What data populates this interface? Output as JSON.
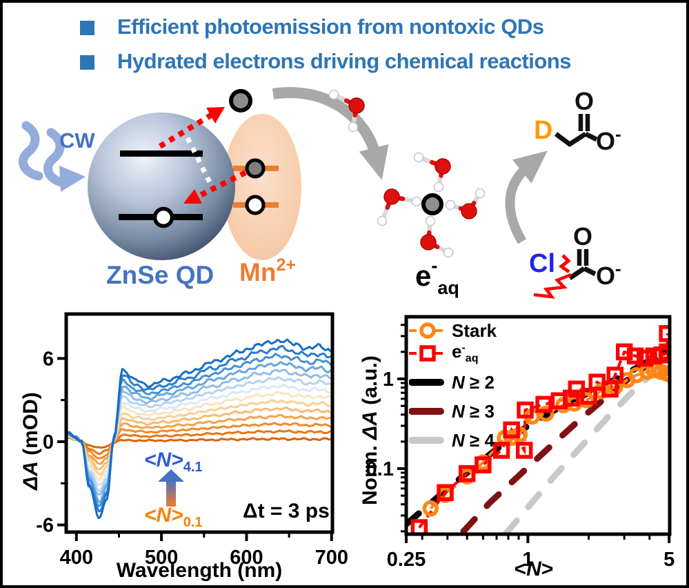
{
  "header": {
    "text_color": "#2E75B6",
    "items": [
      {
        "label": "Efficient photoemission from nontoxic QDs"
      },
      {
        "label": "Hydrated electrons driving chemical reactions"
      }
    ]
  },
  "diagram": {
    "cw_label": "CW",
    "qd_label": "ZnSe QD",
    "mn": {
      "base": "Mn",
      "sup": "2+"
    },
    "eaq": {
      "base": "e",
      "sup": "-",
      "sub": "aq"
    },
    "acetate_top": {
      "d_label": "D",
      "o_label": "O",
      "o2_label": "O",
      "o2_sup": "-"
    },
    "acetate_bottom": {
      "cl_label": "Cl",
      "o_label": "O",
      "o2_label": "O",
      "o2_sup": "-"
    },
    "colors": {
      "cw_arrow": "#93ACDB",
      "cw_text": "#4472C4",
      "qd_text": "#4472C4",
      "mn_text": "#ED7D31",
      "mn_level": "#ED7D31",
      "d_text": "#FF9900",
      "cl_text": "#2222EE",
      "electron_fill": "#8C8C8C",
      "hole_fill": "#FFFFFF",
      "photon_red": "#FF0000",
      "gray_arrow": "#A8A8A8",
      "water_o": "#DF1010",
      "water_h": "#FFFFFF",
      "bond": "#D9D9D9"
    }
  },
  "chart_data": [
    {
      "type": "line",
      "xlabel": "Wavelength (nm)",
      "ylabel_italic": "ΔA",
      "ylabel_rest": " (mOD)",
      "xlim": [
        388,
        701
      ],
      "ylim": [
        -6.5,
        9.2
      ],
      "xticks": [
        400,
        500,
        600,
        700
      ],
      "xminorticks": [
        450,
        550,
        650
      ],
      "yticks": [
        6,
        0,
        -6
      ],
      "yminorticks": [
        3,
        -3
      ],
      "x_anchors": [
        390,
        398,
        406,
        415,
        427,
        436,
        444,
        454,
        470,
        484,
        505,
        530,
        560,
        590,
        615,
        640,
        658,
        672,
        686,
        700
      ],
      "series": [
        {
          "color": "#dd6200",
          "y": [
            0.3,
            0.15,
            0.0,
            -0.27,
            -0.45,
            -0.34,
            -0.03,
            0.1,
            0.09,
            0.08,
            0.09,
            0.11,
            0.14,
            0.17,
            0.19,
            0.2,
            0.19,
            0.18,
            0.19,
            0.18
          ]
        },
        {
          "color": "#e97511",
          "y": [
            0.33,
            0.17,
            0.0,
            -0.5,
            -0.84,
            -0.63,
            -0.01,
            0.49,
            0.42,
            0.38,
            0.42,
            0.48,
            0.57,
            0.65,
            0.71,
            0.75,
            0.72,
            0.69,
            0.71,
            0.68
          ]
        },
        {
          "color": "#f08a28",
          "y": [
            0.36,
            0.18,
            0.0,
            -0.73,
            -1.22,
            -0.92,
            0.01,
            0.89,
            0.76,
            0.69,
            0.76,
            0.86,
            1.0,
            1.13,
            1.23,
            1.29,
            1.24,
            1.19,
            1.21,
            1.16
          ]
        },
        {
          "color": "#f5a24a",
          "y": [
            0.39,
            0.2,
            0.0,
            -0.97,
            -1.61,
            -1.21,
            0.03,
            1.28,
            1.09,
            1.0,
            1.09,
            1.23,
            1.43,
            1.61,
            1.76,
            1.84,
            1.77,
            1.69,
            1.73,
            1.66
          ]
        },
        {
          "color": "#f9ba72",
          "y": [
            0.42,
            0.21,
            0.0,
            -1.19,
            -1.99,
            -1.49,
            0.05,
            1.67,
            1.42,
            1.3,
            1.42,
            1.6,
            1.87,
            2.1,
            2.29,
            2.39,
            2.29,
            2.2,
            2.25,
            2.15
          ]
        },
        {
          "color": "#fccf97",
          "y": [
            0.45,
            0.23,
            0.0,
            -1.42,
            -2.37,
            -1.78,
            0.07,
            2.06,
            1.75,
            1.61,
            1.75,
            1.97,
            2.29,
            2.57,
            2.8,
            2.93,
            2.81,
            2.7,
            2.75,
            2.64
          ]
        },
        {
          "color": "#fbe3c0",
          "y": [
            0.48,
            0.24,
            0.0,
            -1.66,
            -2.76,
            -2.07,
            0.09,
            2.46,
            2.09,
            1.92,
            2.09,
            2.35,
            2.73,
            3.06,
            3.33,
            3.48,
            3.34,
            3.2,
            3.27,
            3.13
          ]
        },
        {
          "color": "#d9e8f7",
          "y": [
            0.52,
            0.26,
            0.0,
            -1.88,
            -3.14,
            -2.36,
            0.11,
            2.84,
            2.41,
            2.22,
            2.41,
            2.71,
            3.15,
            3.53,
            3.85,
            4.02,
            3.86,
            3.7,
            3.78,
            3.62
          ]
        },
        {
          "color": "#b5d3ef",
          "y": [
            0.55,
            0.27,
            0.0,
            -2.12,
            -3.53,
            -2.65,
            0.13,
            3.24,
            2.75,
            2.53,
            2.75,
            3.09,
            3.58,
            4.02,
            4.37,
            4.57,
            4.39,
            4.2,
            4.3,
            4.11
          ]
        },
        {
          "color": "#8fbde8",
          "y": [
            0.58,
            0.29,
            0.0,
            -2.35,
            -3.91,
            -2.93,
            0.15,
            3.63,
            3.09,
            2.83,
            3.08,
            3.45,
            4.01,
            4.49,
            4.89,
            5.11,
            4.91,
            4.7,
            4.8,
            4.6
          ]
        },
        {
          "color": "#67a7df",
          "y": [
            0.61,
            0.3,
            0.0,
            -2.58,
            -4.3,
            -3.23,
            0.17,
            4.02,
            3.42,
            3.14,
            3.42,
            3.83,
            4.44,
            4.98,
            5.42,
            5.66,
            5.43,
            5.21,
            5.32,
            5.09
          ]
        },
        {
          "color": "#4590d5",
          "y": [
            0.64,
            0.32,
            0.0,
            -2.81,
            -4.68,
            -3.51,
            0.19,
            4.41,
            3.75,
            3.44,
            3.74,
            4.2,
            4.87,
            5.46,
            5.94,
            6.21,
            5.96,
            5.71,
            5.84,
            5.59
          ]
        },
        {
          "color": "#2b7ccd",
          "y": [
            0.67,
            0.33,
            0.0,
            -3.04,
            -5.07,
            -3.8,
            0.21,
            4.81,
            4.09,
            3.75,
            4.08,
            4.58,
            5.3,
            5.94,
            6.46,
            6.75,
            6.48,
            6.21,
            6.35,
            6.08
          ]
        },
        {
          "color": "#176dc7",
          "y": [
            0.7,
            0.35,
            0.0,
            -3.27,
            -5.45,
            -4.09,
            0.24,
            5.2,
            4.42,
            4.06,
            4.41,
            4.95,
            5.73,
            6.42,
            6.99,
            7.3,
            7.01,
            6.72,
            6.87,
            6.57
          ]
        }
      ],
      "annotations": {
        "n_high_pre": "<N>",
        "n_high_sub": "4.1",
        "n_high_color": "#2E5BD9",
        "n_low_pre": "<N>",
        "n_low_sub": "0.1",
        "n_low_color": "#F5820B",
        "delay": "Δt = 3 ps",
        "arrow_top_color": "#4472C4",
        "arrow_bottom_color": "#ED7D31"
      }
    },
    {
      "type": "scatter",
      "xscale": "log",
      "yscale": "log",
      "xlabel_pre": "<",
      "xlabel_main": "N",
      "xlabel_post": ">",
      "ylabel_pre": "Norm. ",
      "ylabel_italic": "ΔA",
      "ylabel_post": " (a.u.)",
      "xlim": [
        0.228,
        5.35
      ],
      "ylim": [
        0.0165,
        5.3
      ],
      "xticks": [
        {
          "v": 0.25,
          "label": "0.25"
        },
        {
          "v": 1,
          "label": "1"
        },
        {
          "v": 5,
          "label": "5"
        }
      ],
      "xminorticks": [
        0.3,
        0.4,
        0.5,
        0.6,
        0.7,
        0.8,
        0.9,
        2,
        3,
        4
      ],
      "yticks": [
        {
          "v": 1,
          "label": "1"
        },
        {
          "v": 0.1,
          "label": "0.1"
        }
      ],
      "yminorticks": [
        0.02,
        0.03,
        0.04,
        0.05,
        0.06,
        0.07,
        0.08,
        0.09,
        0.2,
        0.3,
        0.4,
        0.5,
        0.6,
        0.7,
        0.8,
        0.9,
        2,
        3,
        4,
        5
      ],
      "series": [
        {
          "name": "Stark",
          "marker": "circle",
          "color": "#FF8616",
          "dash": true,
          "points": [
            [
              0.33,
              0.036
            ],
            [
              0.39,
              0.051
            ],
            [
              0.5,
              0.082
            ],
            [
              0.6,
              0.117
            ],
            [
              0.77,
              0.22
            ],
            [
              0.83,
              0.22
            ],
            [
              0.91,
              0.24
            ],
            [
              1.05,
              0.38
            ],
            [
              1.23,
              0.41
            ],
            [
              1.5,
              0.51
            ],
            [
              1.7,
              0.53
            ],
            [
              1.95,
              0.58
            ],
            [
              2.3,
              0.73
            ],
            [
              2.7,
              0.81
            ],
            [
              3.1,
              0.97
            ],
            [
              3.45,
              1.1
            ],
            [
              3.9,
              1.2
            ],
            [
              4.2,
              1.25
            ],
            [
              4.55,
              1.2
            ],
            [
              4.85,
              1.15
            ],
            [
              5.05,
              1.12
            ]
          ]
        },
        {
          "name": "e-aq",
          "marker": "square",
          "color": "#FF0000",
          "dash": true,
          "points": [
            [
              0.29,
              0.022
            ],
            [
              0.39,
              0.054
            ],
            [
              0.5,
              0.088
            ],
            [
              0.6,
              0.11
            ],
            [
              0.74,
              0.16
            ],
            [
              0.83,
              0.27
            ],
            [
              0.96,
              0.16
            ],
            [
              0.97,
              0.45
            ],
            [
              1.2,
              0.52
            ],
            [
              1.43,
              0.57
            ],
            [
              1.64,
              0.61
            ],
            [
              1.74,
              0.77
            ],
            [
              2.0,
              0.64
            ],
            [
              2.2,
              0.92
            ],
            [
              2.55,
              0.77
            ],
            [
              2.7,
              1.1
            ],
            [
              3.0,
              2.0
            ],
            [
              3.4,
              1.8
            ],
            [
              3.8,
              1.7
            ],
            [
              4.2,
              1.8
            ],
            [
              4.6,
              1.85
            ],
            [
              4.9,
              2.0
            ],
            [
              4.9,
              3.2
            ]
          ]
        },
        {
          "name": "N>=2",
          "guide": true,
          "color": "#000000",
          "points": [
            [
              0.25,
              0.024
            ],
            [
              0.35,
              0.046
            ],
            [
              0.5,
              0.09
            ],
            [
              0.7,
              0.165
            ],
            [
              1.0,
              0.3
            ],
            [
              1.45,
              0.49
            ],
            [
              2.0,
              0.7
            ],
            [
              2.8,
              1.02
            ],
            [
              3.7,
              1.45
            ],
            [
              4.75,
              2.0
            ]
          ]
        },
        {
          "name": "N>=3",
          "guide": true,
          "color": "#7E1212",
          "points": [
            [
              0.48,
              0.02
            ],
            [
              0.65,
              0.042
            ],
            [
              0.9,
              0.083
            ],
            [
              1.25,
              0.165
            ],
            [
              1.75,
              0.33
            ],
            [
              2.45,
              0.63
            ],
            [
              3.4,
              1.15
            ],
            [
              4.9,
              2.05
            ]
          ]
        },
        {
          "name": "N>=4",
          "guide": true,
          "color": "#C8C8C8",
          "points": [
            [
              0.78,
              0.019
            ],
            [
              1.0,
              0.037
            ],
            [
              1.35,
              0.082
            ],
            [
              1.85,
              0.18
            ],
            [
              2.5,
              0.38
            ],
            [
              3.3,
              0.72
            ],
            [
              4.3,
              1.25
            ],
            [
              5.0,
              1.7
            ]
          ]
        }
      ],
      "legend": {
        "stark": "Stark",
        "eaq_base": "e",
        "eaq_sup": "-",
        "eaq_sub": "aq",
        "n2_it": "N",
        "n2_rest": " ≥ 2",
        "n3_it": "N",
        "n3_rest": " ≥ 3",
        "n4_it": "N",
        "n4_rest": " ≥ 4"
      }
    }
  ]
}
